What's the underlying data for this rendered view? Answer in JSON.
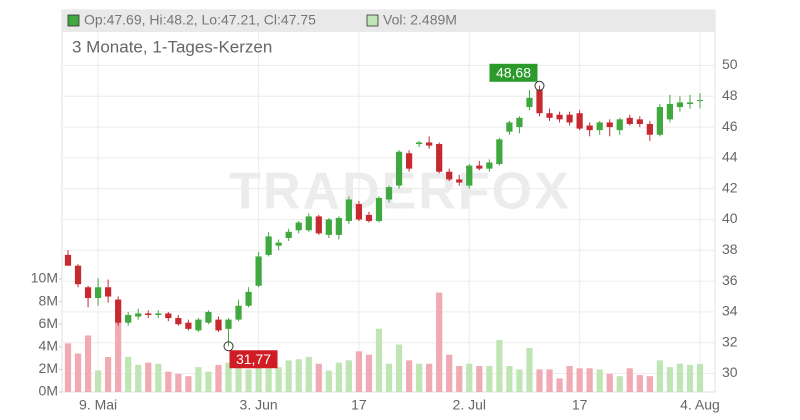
{
  "chart_data": {
    "type": "candlestick",
    "header": {
      "ohlc": "Op:47.69, Hi:48.2, Lo:47.21, Cl:47.75",
      "volume": "Vol: 2.489M"
    },
    "subtitle": "3 Monate, 1-Tages-Kerzen",
    "watermark": "TRADERFOX",
    "categories": [
      null,
      null,
      null,
      "9. Mai",
      null,
      null,
      null,
      null,
      null,
      null,
      null,
      null,
      null,
      null,
      null,
      null,
      null,
      null,
      null,
      "3. Jun",
      null,
      null,
      null,
      null,
      null,
      null,
      null,
      null,
      null,
      "17",
      null,
      null,
      null,
      null,
      null,
      null,
      null,
      null,
      null,
      null,
      "2. Jul",
      null,
      null,
      null,
      null,
      null,
      null,
      null,
      null,
      null,
      null,
      "17",
      null,
      null,
      null,
      null,
      null,
      null,
      null,
      null,
      null,
      null,
      null,
      "4. Aug"
    ],
    "open": [
      37.7,
      37.0,
      35.6,
      34.9,
      35.6,
      34.8,
      33.3,
      33.7,
      33.9,
      33.8,
      33.9,
      33.6,
      33.3,
      32.8,
      33.3,
      33.5,
      32.9,
      33.5,
      34.4,
      35.7,
      37.7,
      38.3,
      38.8,
      39.3,
      39.3,
      40.2,
      39.0,
      39.0,
      39.9,
      41.0,
      40.3,
      39.9,
      41.3,
      42.2,
      44.3,
      44.9,
      45.0,
      44.9,
      43.1,
      42.6,
      42.2,
      43.5,
      43.3,
      43.6,
      45.7,
      46.0,
      47.3,
      48.4,
      46.9,
      46.8,
      46.8,
      46.9,
      46.1,
      45.8,
      46.3,
      45.8,
      46.6,
      46.5,
      46.2,
      45.5,
      46.5,
      47.3,
      47.5,
      47.69
    ],
    "high": [
      38.0,
      37.1,
      35.7,
      36.2,
      36.1,
      35.0,
      34.0,
      34.2,
      34.1,
      34.1,
      34.0,
      33.8,
      33.5,
      33.6,
      34.1,
      33.7,
      33.6,
      34.8,
      35.6,
      37.9,
      39.2,
      38.7,
      39.4,
      39.9,
      40.4,
      40.3,
      40.1,
      40.2,
      41.5,
      41.2,
      40.5,
      41.5,
      42.2,
      44.5,
      44.5,
      45.1,
      45.4,
      45.0,
      43.3,
      42.9,
      43.6,
      43.8,
      43.9,
      45.3,
      46.4,
      46.7,
      48.4,
      48.68,
      47.2,
      47.0,
      47.0,
      47.1,
      46.3,
      46.4,
      46.5,
      46.6,
      46.8,
      46.7,
      46.4,
      47.5,
      48.1,
      48.0,
      48.1,
      48.2
    ],
    "low": [
      37.0,
      35.6,
      34.3,
      34.4,
      34.6,
      33.1,
      33.1,
      33.5,
      33.6,
      33.6,
      33.4,
      33.1,
      32.8,
      32.7,
      33.2,
      32.7,
      31.77,
      33.4,
      34.3,
      35.6,
      37.6,
      38.0,
      38.6,
      39.1,
      39.2,
      39.0,
      38.8,
      38.7,
      39.7,
      39.9,
      39.8,
      39.8,
      41.1,
      42.0,
      43.1,
      44.7,
      44.6,
      43.0,
      42.5,
      42.2,
      42.0,
      43.2,
      43.1,
      43.5,
      45.5,
      45.6,
      47.1,
      46.7,
      46.4,
      46.3,
      46.1,
      45.8,
      45.4,
      45.5,
      45.4,
      45.5,
      46.1,
      46.0,
      45.1,
      45.4,
      46.3,
      47.0,
      47.2,
      47.21
    ],
    "close": [
      37.0,
      35.8,
      34.9,
      35.6,
      35.0,
      33.3,
      33.8,
      33.9,
      33.8,
      33.9,
      33.6,
      33.2,
      32.9,
      33.5,
      34.0,
      32.8,
      33.5,
      34.4,
      35.3,
      37.6,
      38.9,
      38.5,
      39.2,
      39.8,
      40.2,
      39.1,
      40.0,
      40.1,
      41.3,
      40.0,
      39.9,
      41.4,
      42.1,
      44.4,
      43.3,
      45.0,
      44.8,
      43.1,
      42.6,
      42.4,
      43.5,
      43.3,
      43.7,
      45.2,
      46.3,
      46.6,
      47.9,
      46.9,
      46.6,
      46.5,
      46.3,
      45.9,
      45.8,
      46.3,
      46.0,
      46.5,
      46.2,
      46.2,
      45.5,
      47.3,
      47.5,
      47.6,
      47.6,
      47.75
    ],
    "volume": [
      4.3,
      3.4,
      5.0,
      1.9,
      3.1,
      6.2,
      3.1,
      2.4,
      2.6,
      2.5,
      1.8,
      1.6,
      1.4,
      2.2,
      1.8,
      2.4,
      2.6,
      2.4,
      2.0,
      2.4,
      2.1,
      2.2,
      2.8,
      2.9,
      3.1,
      2.5,
      1.9,
      2.6,
      2.8,
      3.6,
      3.3,
      5.6,
      2.5,
      4.2,
      2.8,
      2.5,
      2.5,
      8.8,
      3.3,
      2.3,
      2.5,
      2.3,
      2.3,
      4.6,
      2.3,
      2.0,
      3.9,
      2.0,
      2.0,
      1.2,
      2.3,
      2.1,
      2.1,
      2.0,
      1.6,
      1.4,
      2.1,
      1.5,
      1.4,
      2.8,
      2.2,
      2.5,
      2.4,
      2.489
    ],
    "up_color": "#3fa83f",
    "down_color": "#c62a30",
    "volume_up_color": "#bfe5b5",
    "volume_down_color": "#f0aab3",
    "ylim": [
      28.8,
      53.6
    ],
    "yticks": [
      30,
      32,
      34,
      36,
      38,
      40,
      42,
      44,
      46,
      48,
      50
    ],
    "y2lim": [
      0,
      33.8
    ],
    "y2ticks": [
      {
        "value": 0,
        "label": "0M"
      },
      {
        "value": 2,
        "label": "2M"
      },
      {
        "value": 4,
        "label": "4M"
      },
      {
        "value": 6,
        "label": "6M"
      },
      {
        "value": 8,
        "label": "8M"
      },
      {
        "value": 10,
        "label": "10M"
      }
    ],
    "grid": true,
    "annotations": {
      "max": {
        "value": 48.68,
        "label": "48,68",
        "color": "#2a9a2a"
      },
      "min": {
        "value": 31.77,
        "label": "31,77",
        "color": "#d01c24"
      }
    }
  }
}
